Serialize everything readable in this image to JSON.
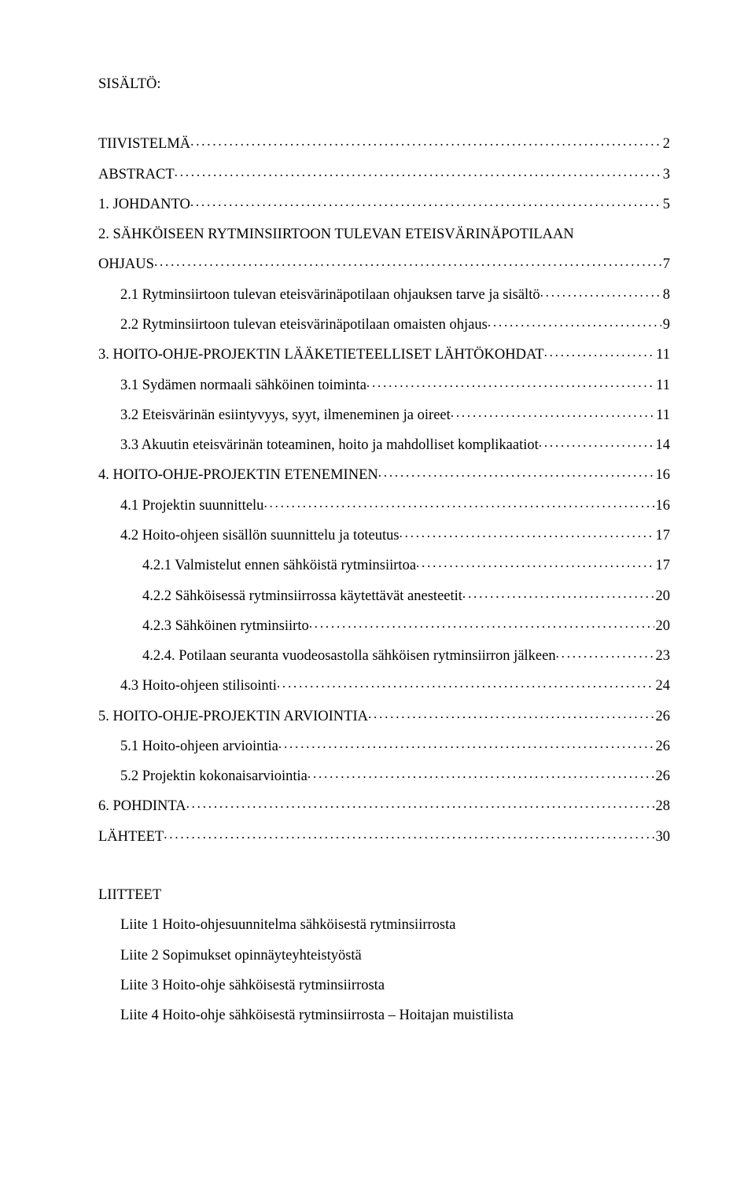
{
  "heading": "SISÄLTÖ:",
  "toc": [
    {
      "label": "TIIVISTELMÄ",
      "page": "2",
      "indent": 0
    },
    {
      "label": "ABSTRACT",
      "page": "3",
      "indent": 0
    },
    {
      "label": "1. JOHDANTO",
      "page": "5",
      "indent": 0
    },
    {
      "label": "2. SÄHKÖISEEN RYTMINSIIRTOON TULEVAN ETEISVÄRINÄPOTILAAN",
      "indent": 0,
      "noLeader": true
    },
    {
      "label": "OHJAUS",
      "page": "7",
      "indent": 0
    },
    {
      "label": "2.1 Rytminsiirtoon tulevan eteisvärinäpotilaan ohjauksen tarve ja sisältö",
      "page": "8",
      "indent": 1
    },
    {
      "label": "2.2 Rytminsiirtoon tulevan eteisvärinäpotilaan omaisten ohjaus",
      "page": "9",
      "indent": 1
    },
    {
      "label": "3. HOITO-OHJE-PROJEKTIN LÄÄKETIETEELLISET LÄHTÖKOHDAT",
      "page": "11",
      "indent": 0
    },
    {
      "label": "3.1 Sydämen normaali sähköinen toiminta",
      "page": "11",
      "indent": 1
    },
    {
      "label": "3.2 Eteisvärinän esiintyvyys, syyt, ilmeneminen ja oireet",
      "page": "11",
      "indent": 1
    },
    {
      "label": "3.3 Akuutin eteisvärinän toteaminen, hoito ja mahdolliset komplikaatiot",
      "page": "14",
      "indent": 1
    },
    {
      "label": "4. HOITO-OHJE-PROJEKTIN ETENEMINEN",
      "page": "16",
      "indent": 0
    },
    {
      "label": "4.1 Projektin suunnittelu",
      "page": "16",
      "indent": 1
    },
    {
      "label": "4.2 Hoito-ohjeen sisällön suunnittelu ja toteutus",
      "page": "17",
      "indent": 1
    },
    {
      "label": "4.2.1 Valmistelut ennen sähköistä rytminsiirtoa",
      "page": "17",
      "indent": 2
    },
    {
      "label": "4.2.2 Sähköisessä rytminsiirrossa käytettävät anesteetit",
      "page": "20",
      "indent": 2
    },
    {
      "label": "4.2.3 Sähköinen rytminsiirto",
      "page": "20",
      "indent": 2
    },
    {
      "label": "4.2.4. Potilaan seuranta vuodeosastolla sähköisen rytminsiirron jälkeen",
      "page": "23",
      "indent": 2
    },
    {
      "label": "4.3 Hoito-ohjeen stilisointi",
      "page": "24",
      "indent": 1
    },
    {
      "label": "5. HOITO-OHJE-PROJEKTIN ARVIOINTIA",
      "page": "26",
      "indent": 0
    },
    {
      "label": "5.1 Hoito-ohjeen arviointia",
      "page": "26",
      "indent": 1
    },
    {
      "label": "5.2 Projektin kokonaisarviointia",
      "page": "26",
      "indent": 1
    },
    {
      "label": "6. POHDINTA",
      "page": "28",
      "indent": 0
    },
    {
      "label": "LÄHTEET",
      "page": "30",
      "indent": 0
    }
  ],
  "appendixHeading": "LIITTEET",
  "appendices": [
    "Liite 1 Hoito-ohjesuunnitelma sähköisestä rytminsiirrosta",
    "Liite 2 Sopimukset opinnäyteyhteistyöstä",
    "Liite 3 Hoito-ohje sähköisestä rytminsiirrosta",
    "Liite 4 Hoito-ohje sähköisestä rytminsiirrosta – Hoitajan muistilista"
  ]
}
